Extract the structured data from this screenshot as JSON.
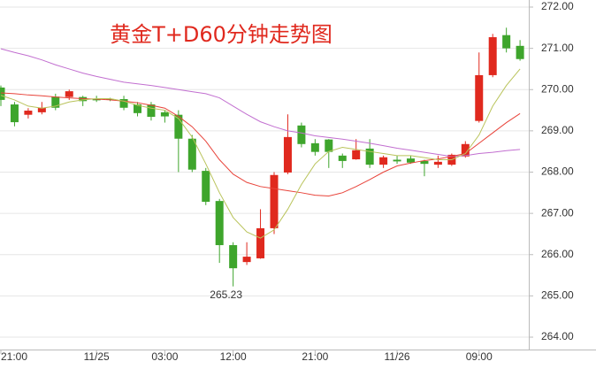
{
  "chart_data": {
    "type": "candlestick",
    "title": "黄金T+D60分钟走势图",
    "categories": [
      "21:00",
      null,
      null,
      null,
      null,
      null,
      null,
      "11/25",
      null,
      null,
      null,
      null,
      "03:00",
      null,
      null,
      null,
      null,
      "12:00",
      null,
      null,
      null,
      null,
      null,
      "21:00",
      null,
      null,
      null,
      null,
      null,
      "11/26",
      null,
      null,
      null,
      null,
      null,
      "09:00",
      null,
      null,
      null
    ],
    "open": [
      270.05,
      269.64,
      269.39,
      269.45,
      269.83,
      269.82,
      269.82,
      269.78,
      269.77,
      269.77,
      269.64,
      269.64,
      269.45,
      269.39,
      268.81,
      268.03,
      267.3,
      266.23,
      265.82,
      265.91,
      266.64,
      267.99,
      269.13,
      268.7,
      268.79,
      268.4,
      268.31,
      268.57,
      268.18,
      268.3,
      268.33,
      268.27,
      268.18,
      268.18,
      268.38,
      269.24,
      270.35,
      271.32,
      271.06
    ],
    "high": [
      270.1,
      269.7,
      269.55,
      269.7,
      269.9,
      270.0,
      269.85,
      269.85,
      269.8,
      269.85,
      269.7,
      269.7,
      269.5,
      269.5,
      268.9,
      268.1,
      267.35,
      266.3,
      266.3,
      267.1,
      268.0,
      269.4,
      269.2,
      268.8,
      268.8,
      268.45,
      268.8,
      268.8,
      268.4,
      268.4,
      268.4,
      268.3,
      268.4,
      268.45,
      268.75,
      270.9,
      271.35,
      271.5,
      271.2
    ],
    "low": [
      269.6,
      269.11,
      269.3,
      269.4,
      269.5,
      269.75,
      269.6,
      269.7,
      269.72,
      269.5,
      269.35,
      269.25,
      269.2,
      268.0,
      268.0,
      267.2,
      265.8,
      265.23,
      265.75,
      265.9,
      266.5,
      267.95,
      268.6,
      268.4,
      268.1,
      268.1,
      268.3,
      268.1,
      268.1,
      268.2,
      268.2,
      267.9,
      268.1,
      268.15,
      268.35,
      269.2,
      270.3,
      270.9,
      270.7
    ],
    "close": [
      269.75,
      269.21,
      269.49,
      269.56,
      269.56,
      269.96,
      269.72,
      269.74,
      269.76,
      269.56,
      269.43,
      269.34,
      269.35,
      268.81,
      268.06,
      267.28,
      266.23,
      265.67,
      265.95,
      266.64,
      267.93,
      268.85,
      268.68,
      268.49,
      268.49,
      268.27,
      268.53,
      268.18,
      268.36,
      268.26,
      268.23,
      268.2,
      268.25,
      268.42,
      268.68,
      270.35,
      271.27,
      271.0,
      270.74
    ],
    "up_color": "#e0291e",
    "down_color": "#3ea52c",
    "low_annotation": "265.23",
    "lines": [
      {
        "color": "#c26fd0",
        "values": [
          270.99,
          270.9,
          270.82,
          270.72,
          270.6,
          270.5,
          270.4,
          270.32,
          270.25,
          270.18,
          270.14,
          270.1,
          270.05,
          270.0,
          269.95,
          269.9,
          269.8,
          269.6,
          269.4,
          269.22,
          269.1,
          269.0,
          268.95,
          268.88,
          268.84,
          268.8,
          268.75,
          268.7,
          268.64,
          268.58,
          268.53,
          268.48,
          268.43,
          268.38,
          268.4,
          268.45,
          268.48,
          268.52,
          268.55
        ]
      },
      {
        "color": "#e8433a",
        "values": [
          269.92,
          269.9,
          269.87,
          269.85,
          269.82,
          269.8,
          269.78,
          269.77,
          269.75,
          269.72,
          269.68,
          269.62,
          269.55,
          269.35,
          269.1,
          268.75,
          268.3,
          267.95,
          267.75,
          267.65,
          267.6,
          267.55,
          267.5,
          267.44,
          267.42,
          267.5,
          267.65,
          267.82,
          268.0,
          268.15,
          268.22,
          268.28,
          268.32,
          268.38,
          268.45,
          268.7,
          268.95,
          269.2,
          269.42
        ]
      },
      {
        "color": "#b9c35a",
        "values": [
          269.86,
          269.75,
          269.6,
          269.55,
          269.6,
          269.7,
          269.75,
          269.78,
          269.78,
          269.72,
          269.62,
          269.55,
          269.5,
          269.3,
          268.85,
          268.2,
          267.5,
          266.9,
          266.55,
          266.4,
          266.6,
          267.1,
          267.7,
          268.2,
          268.5,
          268.6,
          268.55,
          268.5,
          268.45,
          268.4,
          268.4,
          268.35,
          268.3,
          268.3,
          268.45,
          268.9,
          269.6,
          270.1,
          270.5
        ]
      }
    ],
    "ylim": [
      264,
      272
    ],
    "yticks": [
      {
        "value": 264,
        "label": "264.00"
      },
      {
        "value": 265,
        "label": "265.00"
      },
      {
        "value": 266,
        "label": "266.00"
      },
      {
        "value": 267,
        "label": "267.00"
      },
      {
        "value": 268,
        "label": "268.00"
      },
      {
        "value": 269,
        "label": "269.00"
      },
      {
        "value": 270,
        "label": "270.00"
      },
      {
        "value": 271,
        "label": "271.00"
      },
      {
        "value": 272,
        "label": "272.00"
      }
    ],
    "grid": true
  }
}
